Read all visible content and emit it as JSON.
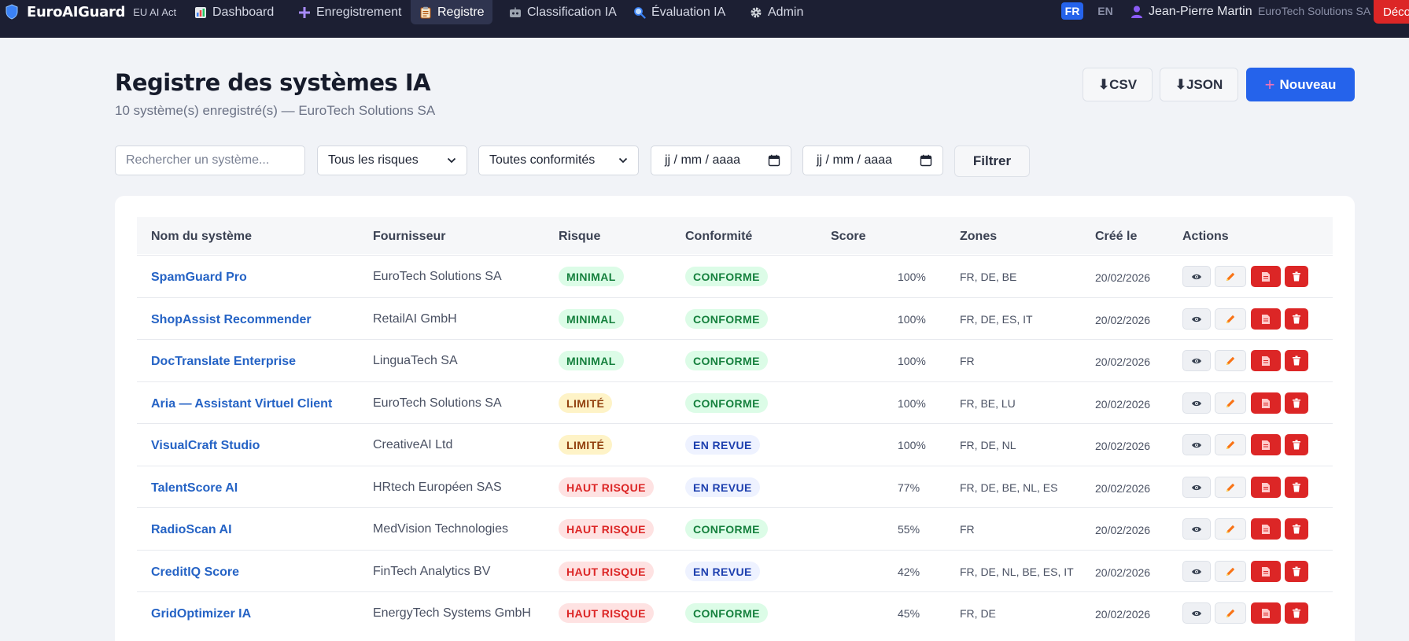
{
  "navbar": {
    "brand": "EuroAIGuard",
    "brand_sub": "EU AI Act",
    "items": [
      {
        "label": "Dashboard",
        "icon": "bar-chart-icon"
      },
      {
        "label": "Enregistrement",
        "icon": "plus-icon"
      },
      {
        "label": "Registre",
        "icon": "clipboard-icon"
      },
      {
        "label": "Classification IA",
        "icon": "robot-icon"
      },
      {
        "label": "Évaluation IA",
        "icon": "magnifier-icon"
      },
      {
        "label": "Admin",
        "icon": "gear-icon"
      }
    ],
    "active_item": "Registre",
    "lang_fr": "FR",
    "lang_en": "EN",
    "active_lang": "FR",
    "user_name": "Jean-Pierre Martin",
    "org": "EuroTech Solutions SA",
    "logout_label": "Déco"
  },
  "header": {
    "title": "Registre des systèmes IA",
    "subtitle": "10 système(s) enregistré(s) — EuroTech Solutions SA",
    "csv_label": "⬇CSV",
    "json_label": "⬇JSON",
    "new_label": "Nouveau"
  },
  "filters": {
    "search_placeholder": "Rechercher un système...",
    "risk_value": "Tous les risques",
    "conformity_value": "Toutes conformités",
    "date_from": "jj / mm / aaaa",
    "date_to": "jj / mm / aaaa",
    "filter_label": "Filtrer"
  },
  "table": {
    "headers": {
      "name": "Nom du système",
      "vendor": "Fournisseur",
      "risk": "Risque",
      "conformity": "Conformité",
      "score": "Score",
      "zones": "Zones",
      "created": "Créé le",
      "actions": "Actions"
    },
    "rows": [
      {
        "name": "SpamGuard Pro",
        "vendor": "EuroTech Solutions SA",
        "risk": "MINIMAL",
        "risk_level": "minimal",
        "conformity": "CONFORME",
        "conformity_level": "conforme",
        "score": "100%",
        "zones": "FR, DE, BE",
        "created": "20/02/2026"
      },
      {
        "name": "ShopAssist Recommender",
        "vendor": "RetailAI GmbH",
        "risk": "MINIMAL",
        "risk_level": "minimal",
        "conformity": "CONFORME",
        "conformity_level": "conforme",
        "score": "100%",
        "zones": "FR, DE, ES, IT",
        "created": "20/02/2026"
      },
      {
        "name": "DocTranslate Enterprise",
        "vendor": "LinguaTech SA",
        "risk": "MINIMAL",
        "risk_level": "minimal",
        "conformity": "CONFORME",
        "conformity_level": "conforme",
        "score": "100%",
        "zones": "FR",
        "created": "20/02/2026"
      },
      {
        "name": "Aria — Assistant Virtuel Client",
        "vendor": "EuroTech Solutions SA",
        "risk": "LIMITÉ",
        "risk_level": "limite",
        "conformity": "CONFORME",
        "conformity_level": "conforme",
        "score": "100%",
        "zones": "FR, BE, LU",
        "created": "20/02/2026"
      },
      {
        "name": "VisualCraft Studio",
        "vendor": "CreativeAI Ltd",
        "risk": "LIMITÉ",
        "risk_level": "limite",
        "conformity": "EN REVUE",
        "conformity_level": "revue",
        "score": "100%",
        "zones": "FR, DE, NL",
        "created": "20/02/2026"
      },
      {
        "name": "TalentScore AI",
        "vendor": "HRtech Européen SAS",
        "risk": "HAUT RISQUE",
        "risk_level": "haut",
        "conformity": "EN REVUE",
        "conformity_level": "revue",
        "score": "77%",
        "zones": "FR, DE, BE, NL, ES",
        "created": "20/02/2026"
      },
      {
        "name": "RadioScan AI",
        "vendor": "MedVision Technologies",
        "risk": "HAUT RISQUE",
        "risk_level": "haut",
        "conformity": "CONFORME",
        "conformity_level": "conforme",
        "score": "55%",
        "zones": "FR",
        "created": "20/02/2026"
      },
      {
        "name": "CreditIQ Score",
        "vendor": "FinTech Analytics BV",
        "risk": "HAUT RISQUE",
        "risk_level": "haut",
        "conformity": "EN REVUE",
        "conformity_level": "revue",
        "score": "42%",
        "zones": "FR, DE, NL, BE, ES, IT",
        "created": "20/02/2026"
      },
      {
        "name": "GridOptimizer IA",
        "vendor": "EnergyTech Systems GmbH",
        "risk": "HAUT RISQUE",
        "risk_level": "haut",
        "conformity": "CONFORME",
        "conformity_level": "conforme",
        "score": "45%",
        "zones": "FR, DE",
        "created": "20/02/2026"
      }
    ]
  },
  "colors": {
    "navbar": "#1c1f33",
    "primary": "#2563eb",
    "danger": "#dc2626",
    "link": "#2563c5"
  }
}
